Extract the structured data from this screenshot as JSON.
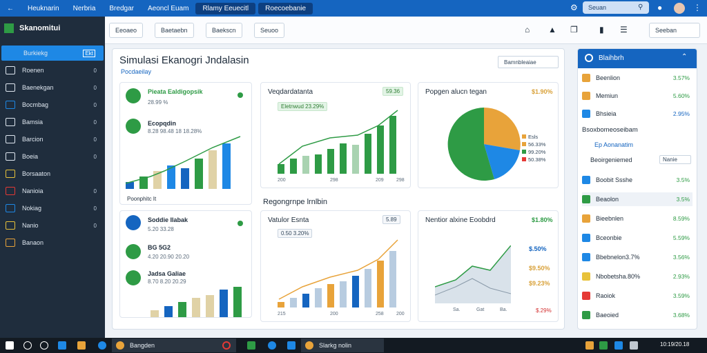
{
  "topbar": {
    "tabs": [
      "Heuknarin",
      "Nerbria",
      "Bredgar",
      "Aeoncl Euam",
      "Rlamy Eeuecitl",
      "Roecoebanie"
    ],
    "search_placeholder": "Seuan"
  },
  "sidebar": {
    "brand": "Skanomitui",
    "items": [
      {
        "label": "Burkiekg",
        "badge": "Ekt",
        "active": true
      },
      {
        "label": "Roenen",
        "badge": "0"
      },
      {
        "label": "Baenekgan",
        "badge": "0"
      },
      {
        "label": "Bocmbag",
        "badge": "0"
      },
      {
        "label": "Bamsia",
        "badge": "0"
      },
      {
        "label": "Barcion",
        "badge": "0"
      },
      {
        "label": "Boeia",
        "badge": "0"
      },
      {
        "label": "Borsaaton",
        "badge": ""
      },
      {
        "label": "Nanioia",
        "badge": "0"
      },
      {
        "label": "Nokiag",
        "badge": "0"
      },
      {
        "label": "Nanio",
        "badge": "0"
      },
      {
        "label": "Banaon",
        "badge": ""
      }
    ]
  },
  "subbar": {
    "buttons": [
      "Eeoaeo",
      "Baetaebn",
      "Baekscn",
      "Seuoo"
    ],
    "right_button": "Seeban"
  },
  "main": {
    "title": "Simulasi Ekanogri Jndalasin",
    "subtitle": "Pocdaeilay",
    "dropdown": "Bamnbleaiae",
    "kpi_card1": {
      "title": "Pieata Ealdigopsik",
      "sub": "28.99 %",
      "row2_label": "Ecopqdin",
      "row2_sub": "8.28 98.48 18 18.28%",
      "footer": "Poonphitc It"
    },
    "chart1": {
      "title": "Veqdardatanta",
      "chip": "59.36",
      "legend": "Eletnwud 23.29%",
      "ticks": [
        "200",
        "298",
        "209",
        "298"
      ]
    },
    "pie": {
      "title": "Popgen alucn tegan",
      "value": "$1.90%",
      "legend": [
        "Esls",
        "56.33%",
        "99.20%",
        "50.38%"
      ]
    },
    "section2_title": "Regongrnpe lrnlbin",
    "kpi_card2": {
      "title": "Soddie Ilabak",
      "sub": "5.20 33.28",
      "row2_label": "BG 5G2",
      "row2_sub": "4.20 20.90 20.20",
      "row3_label": "Jadsa Galiae",
      "row3_sub": "8.70 8.20 20.29"
    },
    "chart2": {
      "title": "Vatulor Esnta",
      "chip": "5.89",
      "legend": "0.50 3.20%",
      "ticks": [
        "215",
        "200",
        "258",
        "200"
      ]
    },
    "area_chart": {
      "title": "Nentior alxine Eoobdrd",
      "value": "$1.80%",
      "values": [
        "$.50%",
        "$9.50%",
        "$9.23%",
        "$.29%"
      ],
      "legend": [
        "Sa.",
        "Gat",
        "Ba."
      ]
    }
  },
  "right_panel": {
    "header": "Blaihbrh",
    "rows_top": [
      {
        "label": "Beenlion",
        "value": "3.57%",
        "color": "#2e9b45"
      },
      {
        "label": "Memiun",
        "value": "5.60%",
        "color": "#2e9b45"
      },
      {
        "label": "Bhsieia",
        "value": "2.95%",
        "color": "#1565c0"
      }
    ],
    "section_title": "Bsoxbomeoseibam",
    "section_sub": "Ep Aonanatim",
    "dropdown": "Beoirgeniemed",
    "dropdown_val": "Nanie",
    "rows": [
      {
        "label": "Boobit Ssshe",
        "value": "3.5%"
      },
      {
        "label": "Beaolon",
        "value": "3.5%",
        "highlight": true
      },
      {
        "label": "Bieebnlen",
        "value": "8.59%"
      },
      {
        "label": "Bceonbie",
        "value": "5.59%"
      },
      {
        "label": "Bbebnelon3.7%",
        "value": "3.56%"
      },
      {
        "label": "Nbobetsha.80%",
        "value": "2.93%"
      },
      {
        "label": "Raoiok",
        "value": "3.59%"
      },
      {
        "label": "Baeoied",
        "value": "3.68%"
      }
    ]
  },
  "taskbar": {
    "app1": "Bangden",
    "app2": "Slarkg nolin",
    "clock": "10:19/20.18"
  }
}
